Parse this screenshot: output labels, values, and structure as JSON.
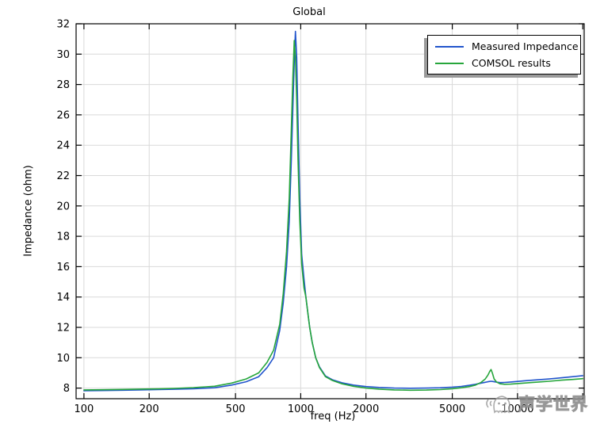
{
  "chart_data": {
    "type": "line",
    "title": "Global",
    "xlabel": "freq (Hz)",
    "ylabel": "Impedance (ohm)",
    "x_scale": "log",
    "xlim": [
      92,
      20300
    ],
    "ylim": [
      7.3,
      32
    ],
    "grid": true,
    "x_ticks": [
      {
        "value": 100,
        "label": "100"
      },
      {
        "value": 200,
        "label": "200"
      },
      {
        "value": 500,
        "label": "500"
      },
      {
        "value": 1000,
        "label": "1000"
      },
      {
        "value": 2000,
        "label": "2000"
      },
      {
        "value": 5000,
        "label": "5000"
      },
      {
        "value": 10000,
        "label": "10000"
      },
      {
        "value": 20000,
        "label": ""
      }
    ],
    "y_ticks": [
      8,
      10,
      12,
      14,
      16,
      18,
      20,
      22,
      24,
      26,
      28,
      30,
      32
    ],
    "legend": {
      "position": "top-right",
      "entries": [
        {
          "label": "Measured Impedance",
          "color": "#2255cc"
        },
        {
          "label": "COMSOL results",
          "color": "#27a63c"
        }
      ]
    },
    "x": [
      100,
      120,
      150,
      180,
      220,
      260,
      320,
      400,
      480,
      560,
      640,
      700,
      750,
      800,
      830,
      860,
      885,
      905,
      920,
      933,
      945,
      958,
      972,
      990,
      1010,
      1035,
      1056,
      1080,
      1100,
      1130,
      1172,
      1220,
      1300,
      1400,
      1550,
      1750,
      2000,
      2300,
      2700,
      3200,
      3800,
      4400,
      5000,
      5500,
      6000,
      6400,
      6800,
      7100,
      7300,
      7450,
      7550,
      7650,
      7800,
      8000,
      8300,
      8700,
      9300,
      10000,
      11000,
      12500,
      14000,
      16000,
      18000,
      20000
    ],
    "series": [
      {
        "name": "Measured Impedance",
        "color": "#2255cc",
        "values": [
          7.83,
          7.84,
          7.86,
          7.88,
          7.9,
          7.92,
          7.96,
          8.02,
          8.2,
          8.42,
          8.75,
          9.35,
          10.0,
          11.8,
          13.6,
          16.0,
          19.0,
          23.0,
          26.5,
          29.5,
          31.5,
          29.8,
          25.5,
          20.5,
          16.8,
          15.2,
          14.0,
          12.9,
          12.0,
          11.0,
          10.0,
          9.4,
          8.8,
          8.55,
          8.35,
          8.2,
          8.1,
          8.04,
          8.0,
          7.99,
          8.0,
          8.02,
          8.06,
          8.11,
          8.18,
          8.25,
          8.33,
          8.38,
          8.42,
          8.44,
          8.45,
          8.44,
          8.42,
          8.39,
          8.36,
          8.37,
          8.4,
          8.44,
          8.49,
          8.55,
          8.6,
          8.68,
          8.75,
          8.82
        ]
      },
      {
        "name": "COMSOL results",
        "color": "#27a63c",
        "values": [
          7.88,
          7.89,
          7.91,
          7.93,
          7.95,
          7.98,
          8.03,
          8.12,
          8.33,
          8.6,
          9.0,
          9.7,
          10.5,
          12.2,
          14.2,
          17.0,
          20.5,
          25.0,
          28.5,
          30.9,
          29.8,
          27.0,
          23.0,
          19.0,
          16.2,
          14.6,
          14.0,
          12.9,
          12.0,
          11.0,
          10.0,
          9.35,
          8.75,
          8.5,
          8.28,
          8.12,
          8.0,
          7.93,
          7.88,
          7.86,
          7.87,
          7.9,
          7.96,
          8.02,
          8.1,
          8.2,
          8.38,
          8.6,
          8.85,
          9.1,
          9.22,
          9.0,
          8.6,
          8.4,
          8.28,
          8.25,
          8.26,
          8.3,
          8.34,
          8.4,
          8.45,
          8.52,
          8.57,
          8.62
        ]
      }
    ],
    "grid_color": "#d9d9d9",
    "axis_color": "#000000"
  },
  "watermark": {
    "text": "声学世界",
    "logo": "ghost-mascot-icon"
  }
}
